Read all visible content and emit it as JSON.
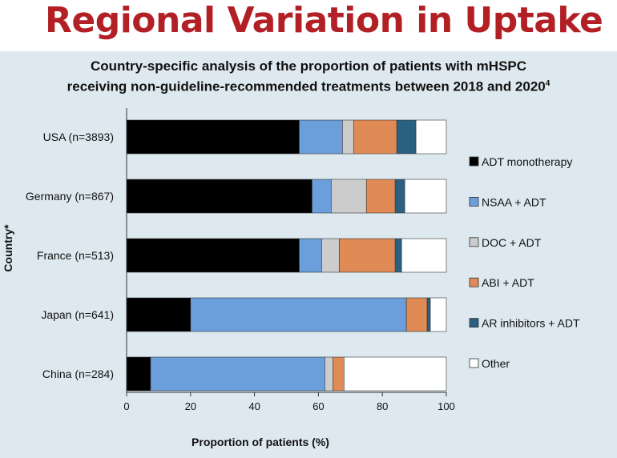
{
  "slide": {
    "title": "Regional Variation in Uptake"
  },
  "chart_data": {
    "type": "bar",
    "orientation": "horizontal",
    "stacked": true,
    "title_line1": "Country-specific analysis of the proportion of patients with mHSPC",
    "title_line2": "receiving non-guideline-recommended treatments between 2018 and 2020",
    "title_superscript": "4",
    "xlabel": "Proportion of patients (%)",
    "ylabel": "Country*",
    "xlim": [
      0,
      100
    ],
    "xticks": [
      "0",
      "20",
      "40",
      "60",
      "80",
      "100"
    ],
    "categories": [
      "USA (n=3893)",
      "Germany (n=867)",
      "France (n=513)",
      "Japan (n=641)",
      "China (n=284)"
    ],
    "series": [
      {
        "name": "ADT monotherapy",
        "color": "#000000",
        "values": [
          54,
          58,
          54,
          20,
          7.5
        ]
      },
      {
        "name": "NSAA + ADT",
        "color": "#6a9fdb",
        "values": [
          13.5,
          6,
          7,
          67.5,
          54.5
        ]
      },
      {
        "name": "DOC + ADT",
        "color": "#cccccc",
        "values": [
          3.5,
          11,
          5.5,
          0,
          2.5
        ]
      },
      {
        "name": "ABI + ADT",
        "color": "#e08a55",
        "values": [
          13.5,
          9,
          17.5,
          6.5,
          3.5
        ]
      },
      {
        "name": "AR inhibitors + ADT",
        "color": "#2b6180",
        "values": [
          6,
          3,
          2,
          1,
          0
        ]
      },
      {
        "name": "Other",
        "color": "#ffffff",
        "values": [
          9.5,
          13,
          14,
          5,
          32
        ]
      }
    ],
    "grid": false,
    "legend_position": "right"
  }
}
